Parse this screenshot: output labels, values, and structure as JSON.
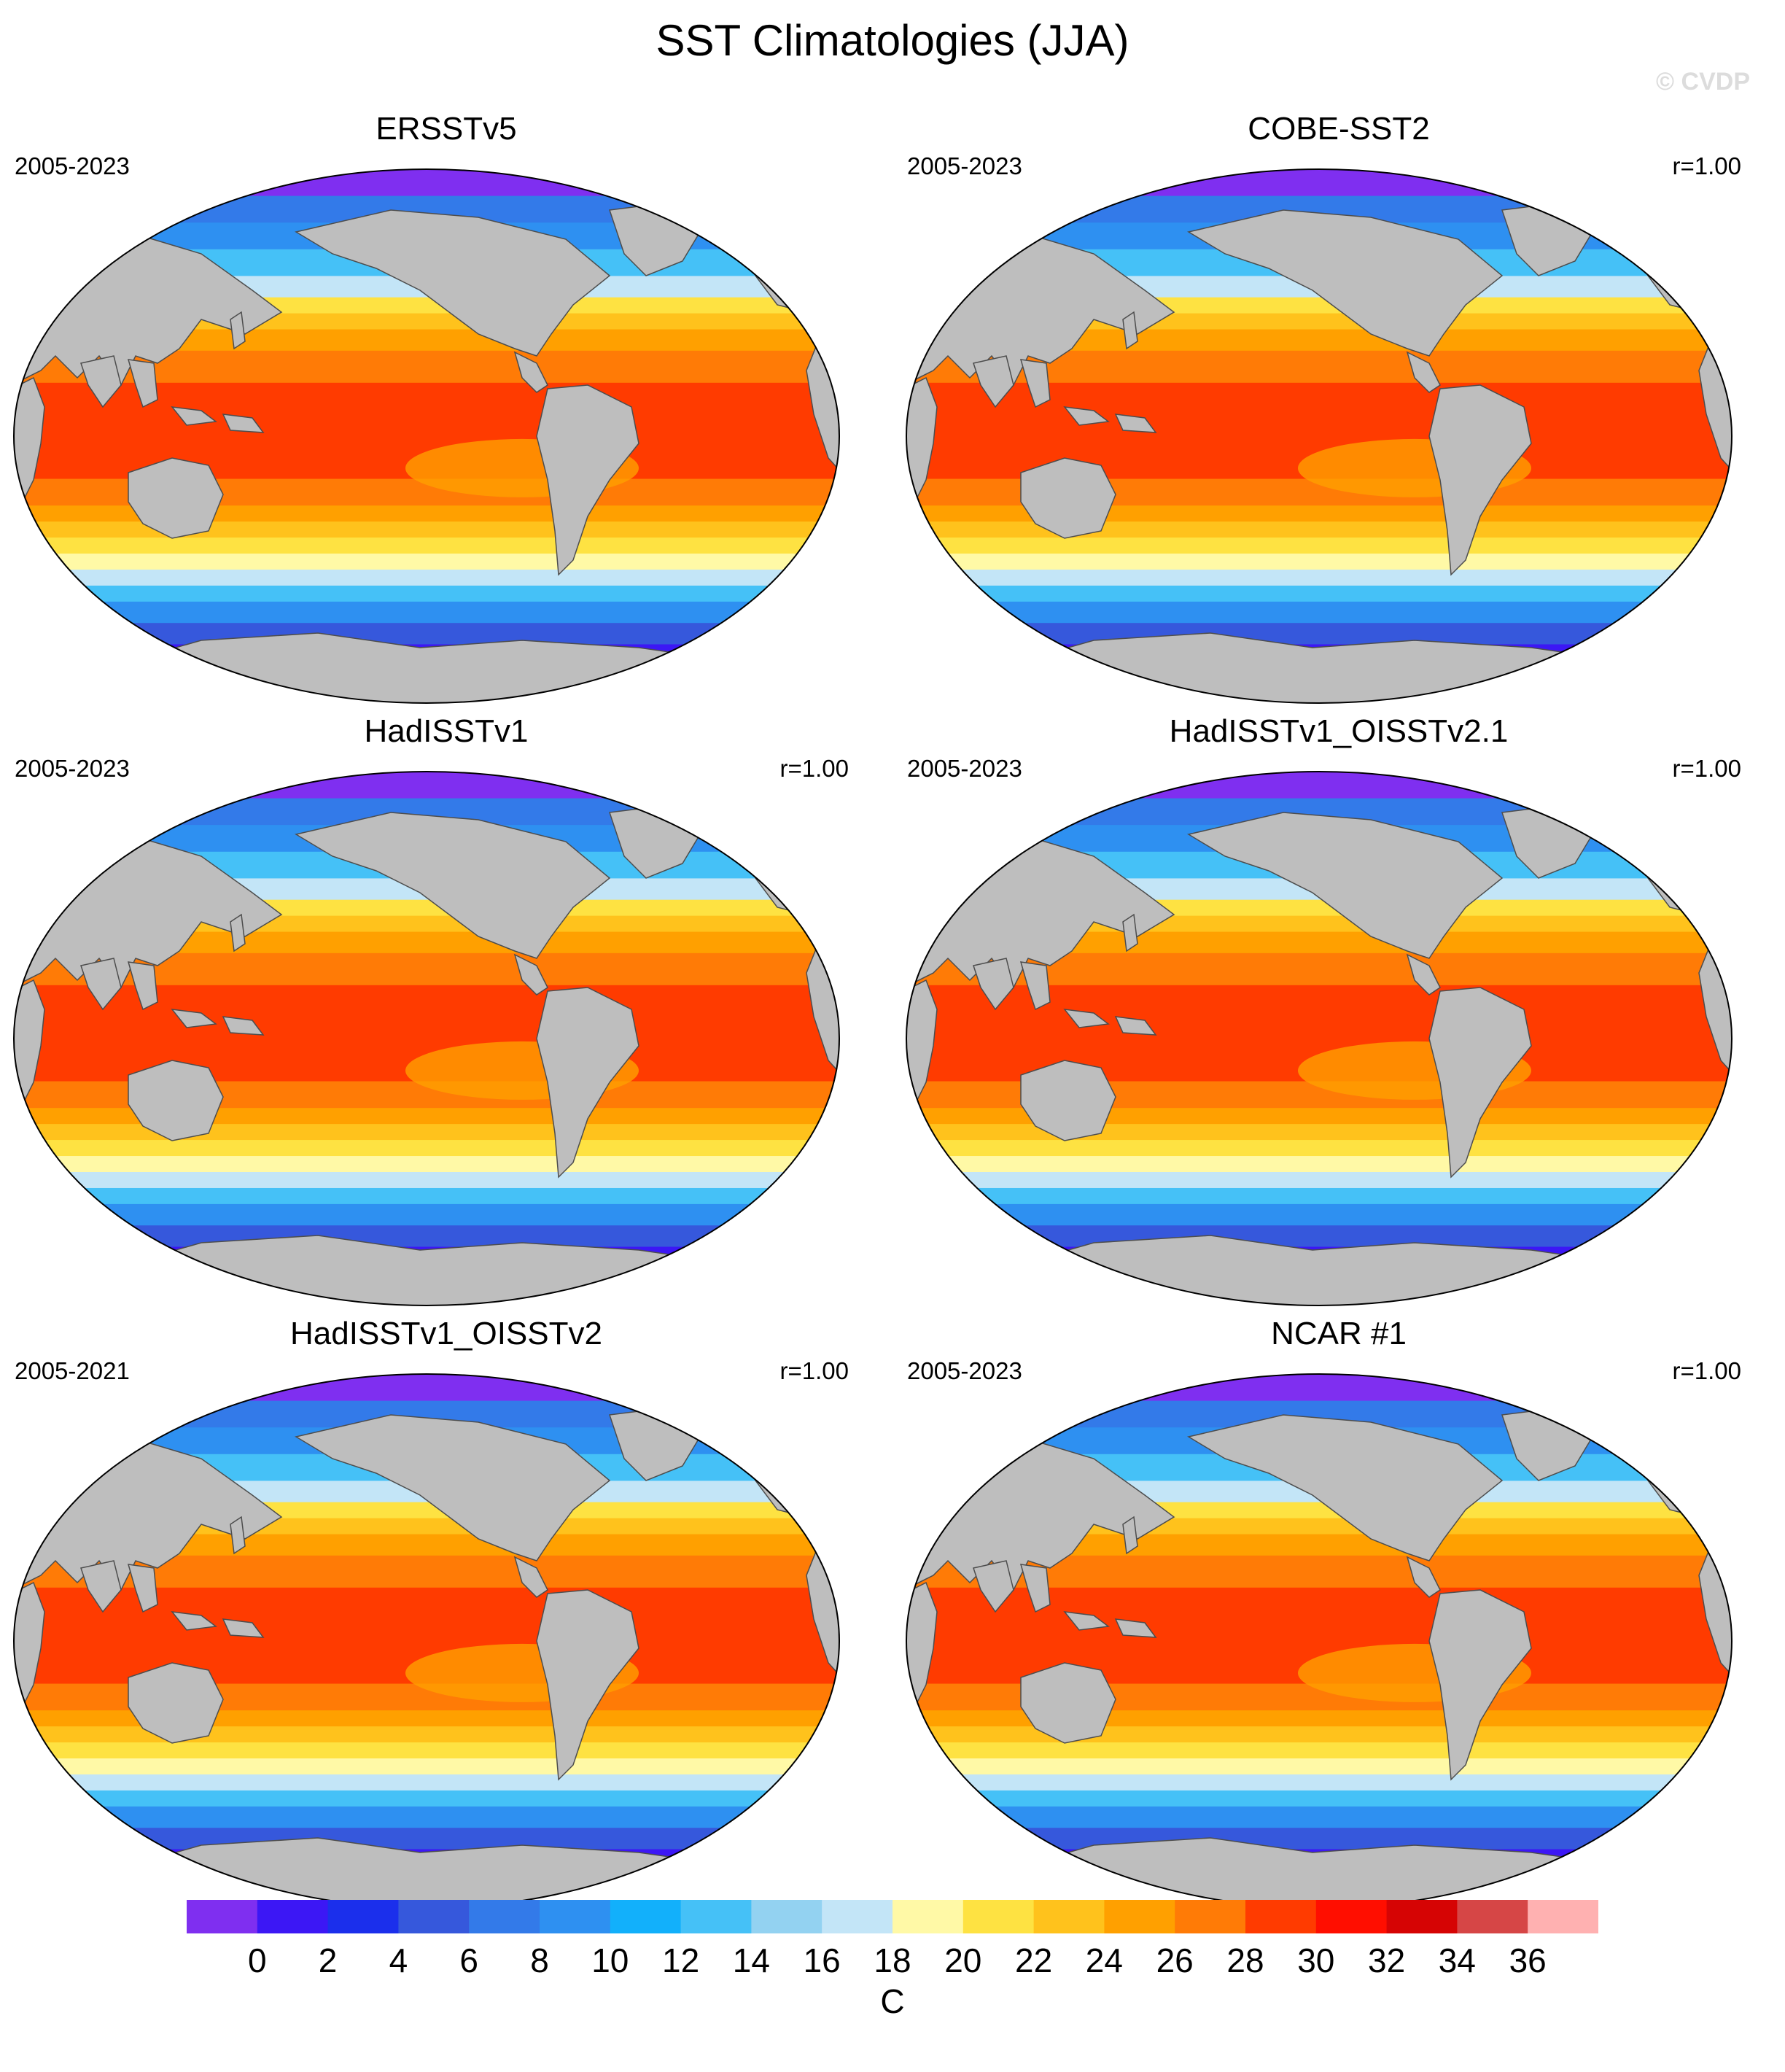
{
  "title": "SST Climatologies (JJA)",
  "watermark": "© CVDP",
  "panels": [
    {
      "name": "ERSSTv5",
      "years": "2005-2023",
      "r": ""
    },
    {
      "name": "COBE-SST2",
      "years": "2005-2023",
      "r": "r=1.00"
    },
    {
      "name": "HadISSTv1",
      "years": "2005-2023",
      "r": "r=1.00"
    },
    {
      "name": "HadISSTv1_OISSTv2.1",
      "years": "2005-2023",
      "r": "r=1.00"
    },
    {
      "name": "HadISSTv1_OISSTv2",
      "years": "2005-2021",
      "r": "r=1.00"
    },
    {
      "name": "NCAR #1",
      "years": "2005-2023",
      "r": "r=1.00"
    }
  ],
  "colorbar": {
    "unit": "C",
    "labels": [
      "0",
      "2",
      "4",
      "6",
      "8",
      "10",
      "12",
      "14",
      "16",
      "18",
      "20",
      "22",
      "24",
      "26",
      "28",
      "30",
      "32",
      "34",
      "36"
    ],
    "colors": [
      "#7f2ff0",
      "#3c17f5",
      "#1b2fec",
      "#3658dc",
      "#337ae9",
      "#2e90f1",
      "#12b0fb",
      "#45c1f7",
      "#93d2f1",
      "#c3e5f7",
      "#fff9a6",
      "#fee242",
      "#ffc21c",
      "#ffa000",
      "#ff7b06",
      "#ff3b00",
      "#ff0e00",
      "#d60404",
      "#d64646",
      "#ffb1b1"
    ]
  },
  "map_colors": {
    "land": "#bebebe",
    "missing": "#ffffff",
    "coast": "#4d4d4d"
  }
}
